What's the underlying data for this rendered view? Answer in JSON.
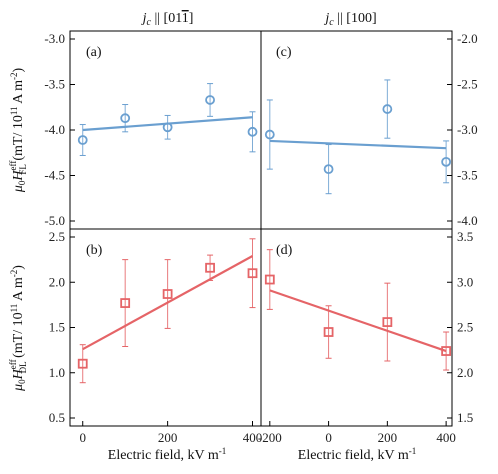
{
  "colors": {
    "blue": "#6a9fd0",
    "red": "#e56467"
  },
  "chart_data": [
    {
      "panel": "(a)",
      "type": "scatter",
      "column_title": "j_c || [01̅1]",
      "title_base": "j",
      "title_sub": "c",
      "title_rest": " || [01",
      "title_bar": "1",
      "title_end": "]",
      "ylim": [
        -5.0,
        -3.0
      ],
      "yticks": [
        "-3.0",
        "-3.5",
        "-4.0",
        "-4.5",
        "-5.0"
      ],
      "xlim": [
        -30,
        420
      ],
      "points": [
        {
          "x": 0,
          "y": -4.11,
          "err": 0.17
        },
        {
          "x": 100,
          "y": -3.87,
          "err": 0.15
        },
        {
          "x": 200,
          "y": -3.97,
          "err": 0.13
        },
        {
          "x": 300,
          "y": -3.67,
          "err": 0.18
        },
        {
          "x": 400,
          "y": -4.02,
          "err": 0.22
        }
      ],
      "fit": [
        [
          0,
          -4.0
        ],
        [
          400,
          -3.86
        ]
      ],
      "color": "blue",
      "marker": "circle"
    },
    {
      "panel": "(c)",
      "type": "scatter",
      "column_title": "j_c || [100]",
      "title_base": "j",
      "title_sub": "c",
      "title_rest": " || [100]",
      "ylim": [
        -4.0,
        -2.0
      ],
      "yticks": [
        "-2.0",
        "-2.5",
        "-3.0",
        "-3.5",
        "-4.0"
      ],
      "xlim": [
        -230,
        420
      ],
      "points": [
        {
          "x": -200,
          "y": -3.05,
          "err": 0.38
        },
        {
          "x": 0,
          "y": -3.43,
          "err": 0.27
        },
        {
          "x": 200,
          "y": -2.77,
          "err": 0.32
        },
        {
          "x": 400,
          "y": -3.35,
          "err": 0.23
        }
      ],
      "fit": [
        [
          -200,
          -3.12
        ],
        [
          400,
          -3.2
        ]
      ],
      "color": "blue",
      "marker": "circle"
    },
    {
      "panel": "(b)",
      "type": "scatter",
      "ylim": [
        0.5,
        2.5
      ],
      "yticks": [
        "2.5",
        "2.0",
        "1.5",
        "1.0",
        "0.5"
      ],
      "xlim": [
        -30,
        420
      ],
      "xticks": [
        "0",
        "200",
        "400"
      ],
      "points": [
        {
          "x": 0,
          "y": 1.1,
          "err": 0.21
        },
        {
          "x": 100,
          "y": 1.77,
          "err": 0.48
        },
        {
          "x": 200,
          "y": 1.87,
          "err": 0.38
        },
        {
          "x": 300,
          "y": 2.16,
          "err": 0.14
        },
        {
          "x": 400,
          "y": 2.1,
          "err": 0.38
        }
      ],
      "fit": [
        [
          0,
          1.26
        ],
        [
          400,
          2.29
        ]
      ],
      "color": "red",
      "marker": "square"
    },
    {
      "panel": "(d)",
      "type": "scatter",
      "ylim": [
        1.5,
        3.5
      ],
      "yticks": [
        "3.5",
        "3.0",
        "2.5",
        "2.0",
        "1.5"
      ],
      "xlim": [
        -230,
        420
      ],
      "xticks": [
        "-200",
        "0",
        "200",
        "400"
      ],
      "points": [
        {
          "x": -200,
          "y": 3.03,
          "err": 0.33
        },
        {
          "x": 0,
          "y": 2.45,
          "err": 0.29
        },
        {
          "x": 200,
          "y": 2.56,
          "err": 0.43
        },
        {
          "x": 400,
          "y": 2.24,
          "err": 0.21
        }
      ],
      "fit": [
        [
          -200,
          2.91
        ],
        [
          400,
          2.24
        ]
      ],
      "color": "red",
      "marker": "square"
    }
  ],
  "axes": {
    "xlabel": "Electric field, kV m",
    "xlabel_sup": "-1",
    "ylabel_top": {
      "mu": "μ",
      "mu_sub": "0",
      "H": "H",
      "sup": "eff",
      "sub": "FL",
      "rest": " (mT/ 10",
      "rest_sup": "11",
      "rest2": " A m",
      "rest2_sup": "-2",
      "end": ")"
    },
    "ylabel_bottom": {
      "mu": "μ",
      "mu_sub": "0",
      "H": "H",
      "sup": "eff",
      "sub": "DL",
      "rest": " (mT/ 10",
      "rest_sup": "11",
      "rest2": " A m",
      "rest2_sup": "-2",
      "end": ")"
    }
  }
}
